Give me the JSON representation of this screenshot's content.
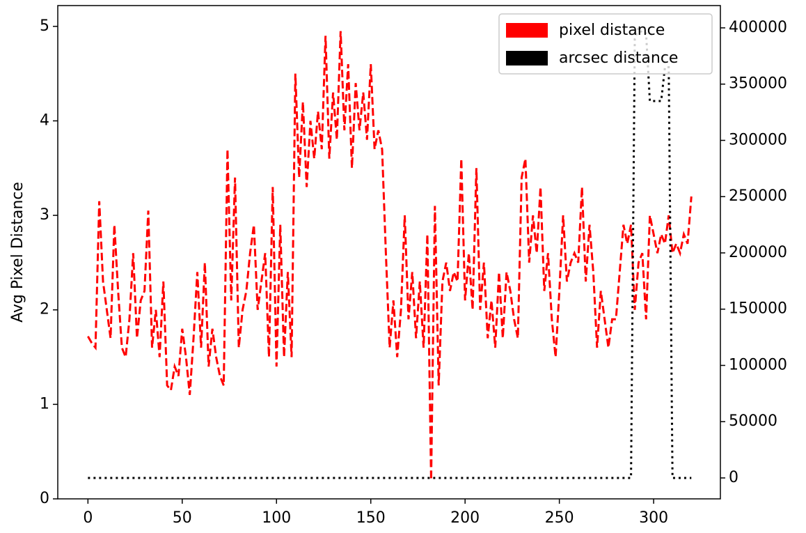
{
  "chart_data": {
    "type": "line",
    "y_label": "Avg Pixel Distance",
    "legend": "upper right",
    "x": [
      0,
      2,
      4,
      6,
      8,
      10,
      12,
      14,
      16,
      18,
      20,
      22,
      24,
      26,
      28,
      30,
      32,
      34,
      36,
      38,
      40,
      42,
      44,
      46,
      48,
      50,
      52,
      54,
      56,
      58,
      60,
      62,
      64,
      66,
      68,
      70,
      72,
      74,
      76,
      78,
      80,
      82,
      84,
      86,
      88,
      90,
      92,
      94,
      96,
      98,
      100,
      102,
      104,
      106,
      108,
      110,
      112,
      114,
      116,
      118,
      120,
      122,
      124,
      126,
      128,
      130,
      132,
      134,
      136,
      138,
      140,
      142,
      144,
      146,
      148,
      150,
      152,
      154,
      156,
      158,
      160,
      162,
      164,
      166,
      168,
      170,
      172,
      174,
      176,
      178,
      180,
      182,
      184,
      186,
      188,
      190,
      192,
      194,
      196,
      198,
      200,
      202,
      204,
      206,
      208,
      210,
      212,
      214,
      216,
      218,
      220,
      222,
      224,
      226,
      228,
      230,
      232,
      234,
      236,
      238,
      240,
      242,
      244,
      246,
      248,
      250,
      252,
      254,
      256,
      258,
      260,
      262,
      264,
      266,
      268,
      270,
      272,
      274,
      276,
      278,
      280,
      282,
      284,
      286,
      288,
      290,
      292,
      294,
      296,
      298,
      300,
      302,
      304,
      306,
      308,
      310,
      312,
      314,
      316,
      318,
      320
    ],
    "series": [
      {
        "name": "pixel distance",
        "color": "#ff0000",
        "axis": "y",
        "style": "dashed",
        "values": [
          1.72,
          1.65,
          1.6,
          3.15,
          2.3,
          2.0,
          1.7,
          2.9,
          2.2,
          1.6,
          1.5,
          1.9,
          2.6,
          1.7,
          2.1,
          2.2,
          3.05,
          1.6,
          2.0,
          1.5,
          2.3,
          1.2,
          1.15,
          1.4,
          1.3,
          1.8,
          1.5,
          1.1,
          1.7,
          2.4,
          1.6,
          2.5,
          1.4,
          1.8,
          1.5,
          1.3,
          1.2,
          3.7,
          2.1,
          3.4,
          1.6,
          2.0,
          2.2,
          2.6,
          2.9,
          2.0,
          2.3,
          2.6,
          1.5,
          3.3,
          1.4,
          2.9,
          1.5,
          2.4,
          1.5,
          4.5,
          3.4,
          4.2,
          3.3,
          4.0,
          3.6,
          4.1,
          3.7,
          4.9,
          3.6,
          4.3,
          3.8,
          4.95,
          3.9,
          4.6,
          3.5,
          4.4,
          3.9,
          4.3,
          3.8,
          4.6,
          3.7,
          3.9,
          3.7,
          2.6,
          1.6,
          2.1,
          1.5,
          2.0,
          3.0,
          1.9,
          2.4,
          1.7,
          2.3,
          1.6,
          2.8,
          0.2,
          3.1,
          1.2,
          2.3,
          2.5,
          2.2,
          2.4,
          2.3,
          3.6,
          2.1,
          2.6,
          2.0,
          3.5,
          2.0,
          2.5,
          1.7,
          2.1,
          1.6,
          2.4,
          1.7,
          2.4,
          2.2,
          1.9,
          1.7,
          3.4,
          3.6,
          2.5,
          3.0,
          2.6,
          3.3,
          2.2,
          2.6,
          1.9,
          1.5,
          2.2,
          3.0,
          2.3,
          2.5,
          2.6,
          2.5,
          3.3,
          2.3,
          2.9,
          2.4,
          1.6,
          2.2,
          1.9,
          1.6,
          1.9,
          1.9,
          2.4,
          2.9,
          2.7,
          2.9,
          2.0,
          2.5,
          2.6,
          1.9,
          3.0,
          2.8,
          2.6,
          2.8,
          2.7,
          3.0,
          2.6,
          2.7,
          2.6,
          2.8,
          2.7,
          3.2
        ]
      },
      {
        "name": "arcsec distance",
        "color": "#000000",
        "axis": "y2",
        "style": "dotted",
        "values": [
          0,
          0,
          0,
          0,
          0,
          0,
          0,
          0,
          0,
          0,
          0,
          0,
          0,
          0,
          0,
          0,
          0,
          0,
          0,
          0,
          0,
          0,
          0,
          0,
          0,
          0,
          0,
          0,
          0,
          0,
          0,
          0,
          0,
          0,
          0,
          0,
          0,
          0,
          0,
          0,
          0,
          0,
          0,
          0,
          0,
          0,
          0,
          0,
          0,
          0,
          0,
          0,
          0,
          0,
          0,
          0,
          0,
          0,
          0,
          0,
          0,
          0,
          0,
          0,
          0,
          0,
          0,
          0,
          0,
          0,
          0,
          0,
          0,
          0,
          0,
          0,
          0,
          0,
          0,
          0,
          0,
          0,
          0,
          0,
          0,
          0,
          0,
          0,
          0,
          0,
          0,
          0,
          0,
          0,
          0,
          0,
          0,
          0,
          0,
          0,
          0,
          0,
          0,
          0,
          0,
          0,
          0,
          0,
          0,
          0,
          0,
          0,
          0,
          0,
          0,
          0,
          0,
          0,
          0,
          0,
          0,
          0,
          0,
          0,
          0,
          0,
          0,
          0,
          0,
          0,
          0,
          0,
          0,
          0,
          0,
          0,
          0,
          0,
          0,
          0,
          0,
          0,
          0,
          0,
          0,
          390000,
          400000,
          395000,
          395000,
          335000,
          335000,
          335000,
          335000,
          365000,
          365000,
          0,
          0,
          0,
          0,
          0,
          0
        ]
      }
    ],
    "xlim": [
      -16,
      335.4
    ],
    "xticks": [
      0,
      50,
      100,
      150,
      200,
      250,
      300
    ],
    "ylim": [
      0,
      5.22
    ],
    "yticks": [
      0,
      1,
      2,
      3,
      4,
      5
    ],
    "y2lim": [
      -18600,
      419800
    ],
    "y2ticks": [
      0,
      50000,
      100000,
      150000,
      200000,
      250000,
      300000,
      350000,
      400000
    ]
  }
}
